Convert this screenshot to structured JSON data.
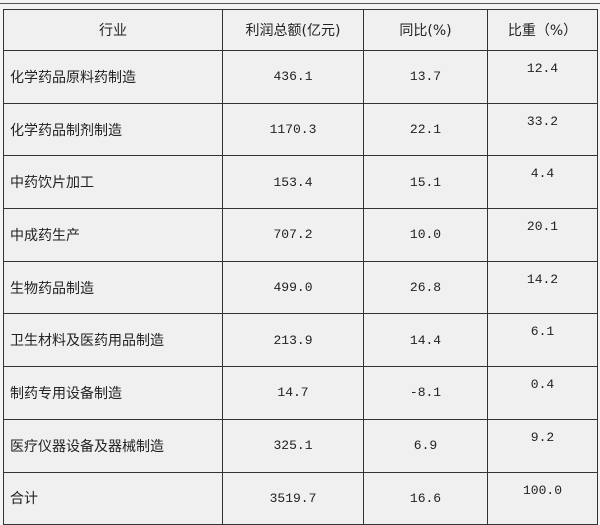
{
  "headers": [
    "行业",
    "利润总额(亿元)",
    "同比(%)",
    "比重（%）"
  ],
  "rows": [
    {
      "industry": "化学药品原料药制造",
      "profit": "436.1",
      "yoy": "13.7",
      "share": "12.4"
    },
    {
      "industry": "化学药品制剂制造",
      "profit": "1170.3",
      "yoy": "22.1",
      "share": "33.2"
    },
    {
      "industry": "中药饮片加工",
      "profit": "153.4",
      "yoy": "15.1",
      "share": "4.4"
    },
    {
      "industry": "中成药生产",
      "profit": "707.2",
      "yoy": "10.0",
      "share": "20.1"
    },
    {
      "industry": "生物药品制造",
      "profit": "499.0",
      "yoy": "26.8",
      "share": "14.2"
    },
    {
      "industry": "卫生材料及医药用品制造",
      "profit": "213.9",
      "yoy": "14.4",
      "share": "6.1"
    },
    {
      "industry": "制药专用设备制造",
      "profit": "14.7",
      "yoy": "-8.1",
      "share": "0.4"
    },
    {
      "industry": "医疗仪器设备及器械制造",
      "profit": "325.1",
      "yoy": "6.9",
      "share": "9.2"
    },
    {
      "industry": "合计",
      "profit": "3519.7",
      "yoy": "16.6",
      "share": "100.0"
    }
  ]
}
